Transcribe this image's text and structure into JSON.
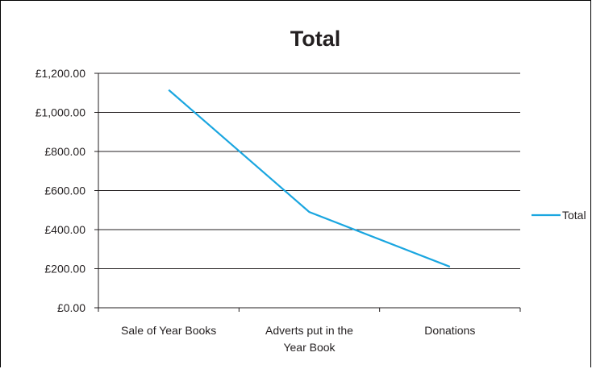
{
  "chart_data": {
    "type": "line",
    "title": "Total",
    "categories": [
      "Sale of Year Books",
      "Adverts put in the Year Book",
      "Donations"
    ],
    "category_label_lines": [
      [
        "Sale of Year Books"
      ],
      [
        "Adverts put in the",
        "Year Book"
      ],
      [
        "Donations"
      ]
    ],
    "series": [
      {
        "name": "Total",
        "values": [
          1115,
          490,
          210
        ],
        "color": "#1aa6e0"
      }
    ],
    "ylim": [
      0,
      1200
    ],
    "yticks": [
      0,
      200,
      400,
      600,
      800,
      1000,
      1200
    ],
    "ytick_labels": [
      "£0.00",
      "£200.00",
      "£400.00",
      "£600.00",
      "£800.00",
      "£1,000.00",
      "£1,200.00"
    ],
    "xlabel": "",
    "ylabel": "",
    "grid": true,
    "legend": "right"
  }
}
